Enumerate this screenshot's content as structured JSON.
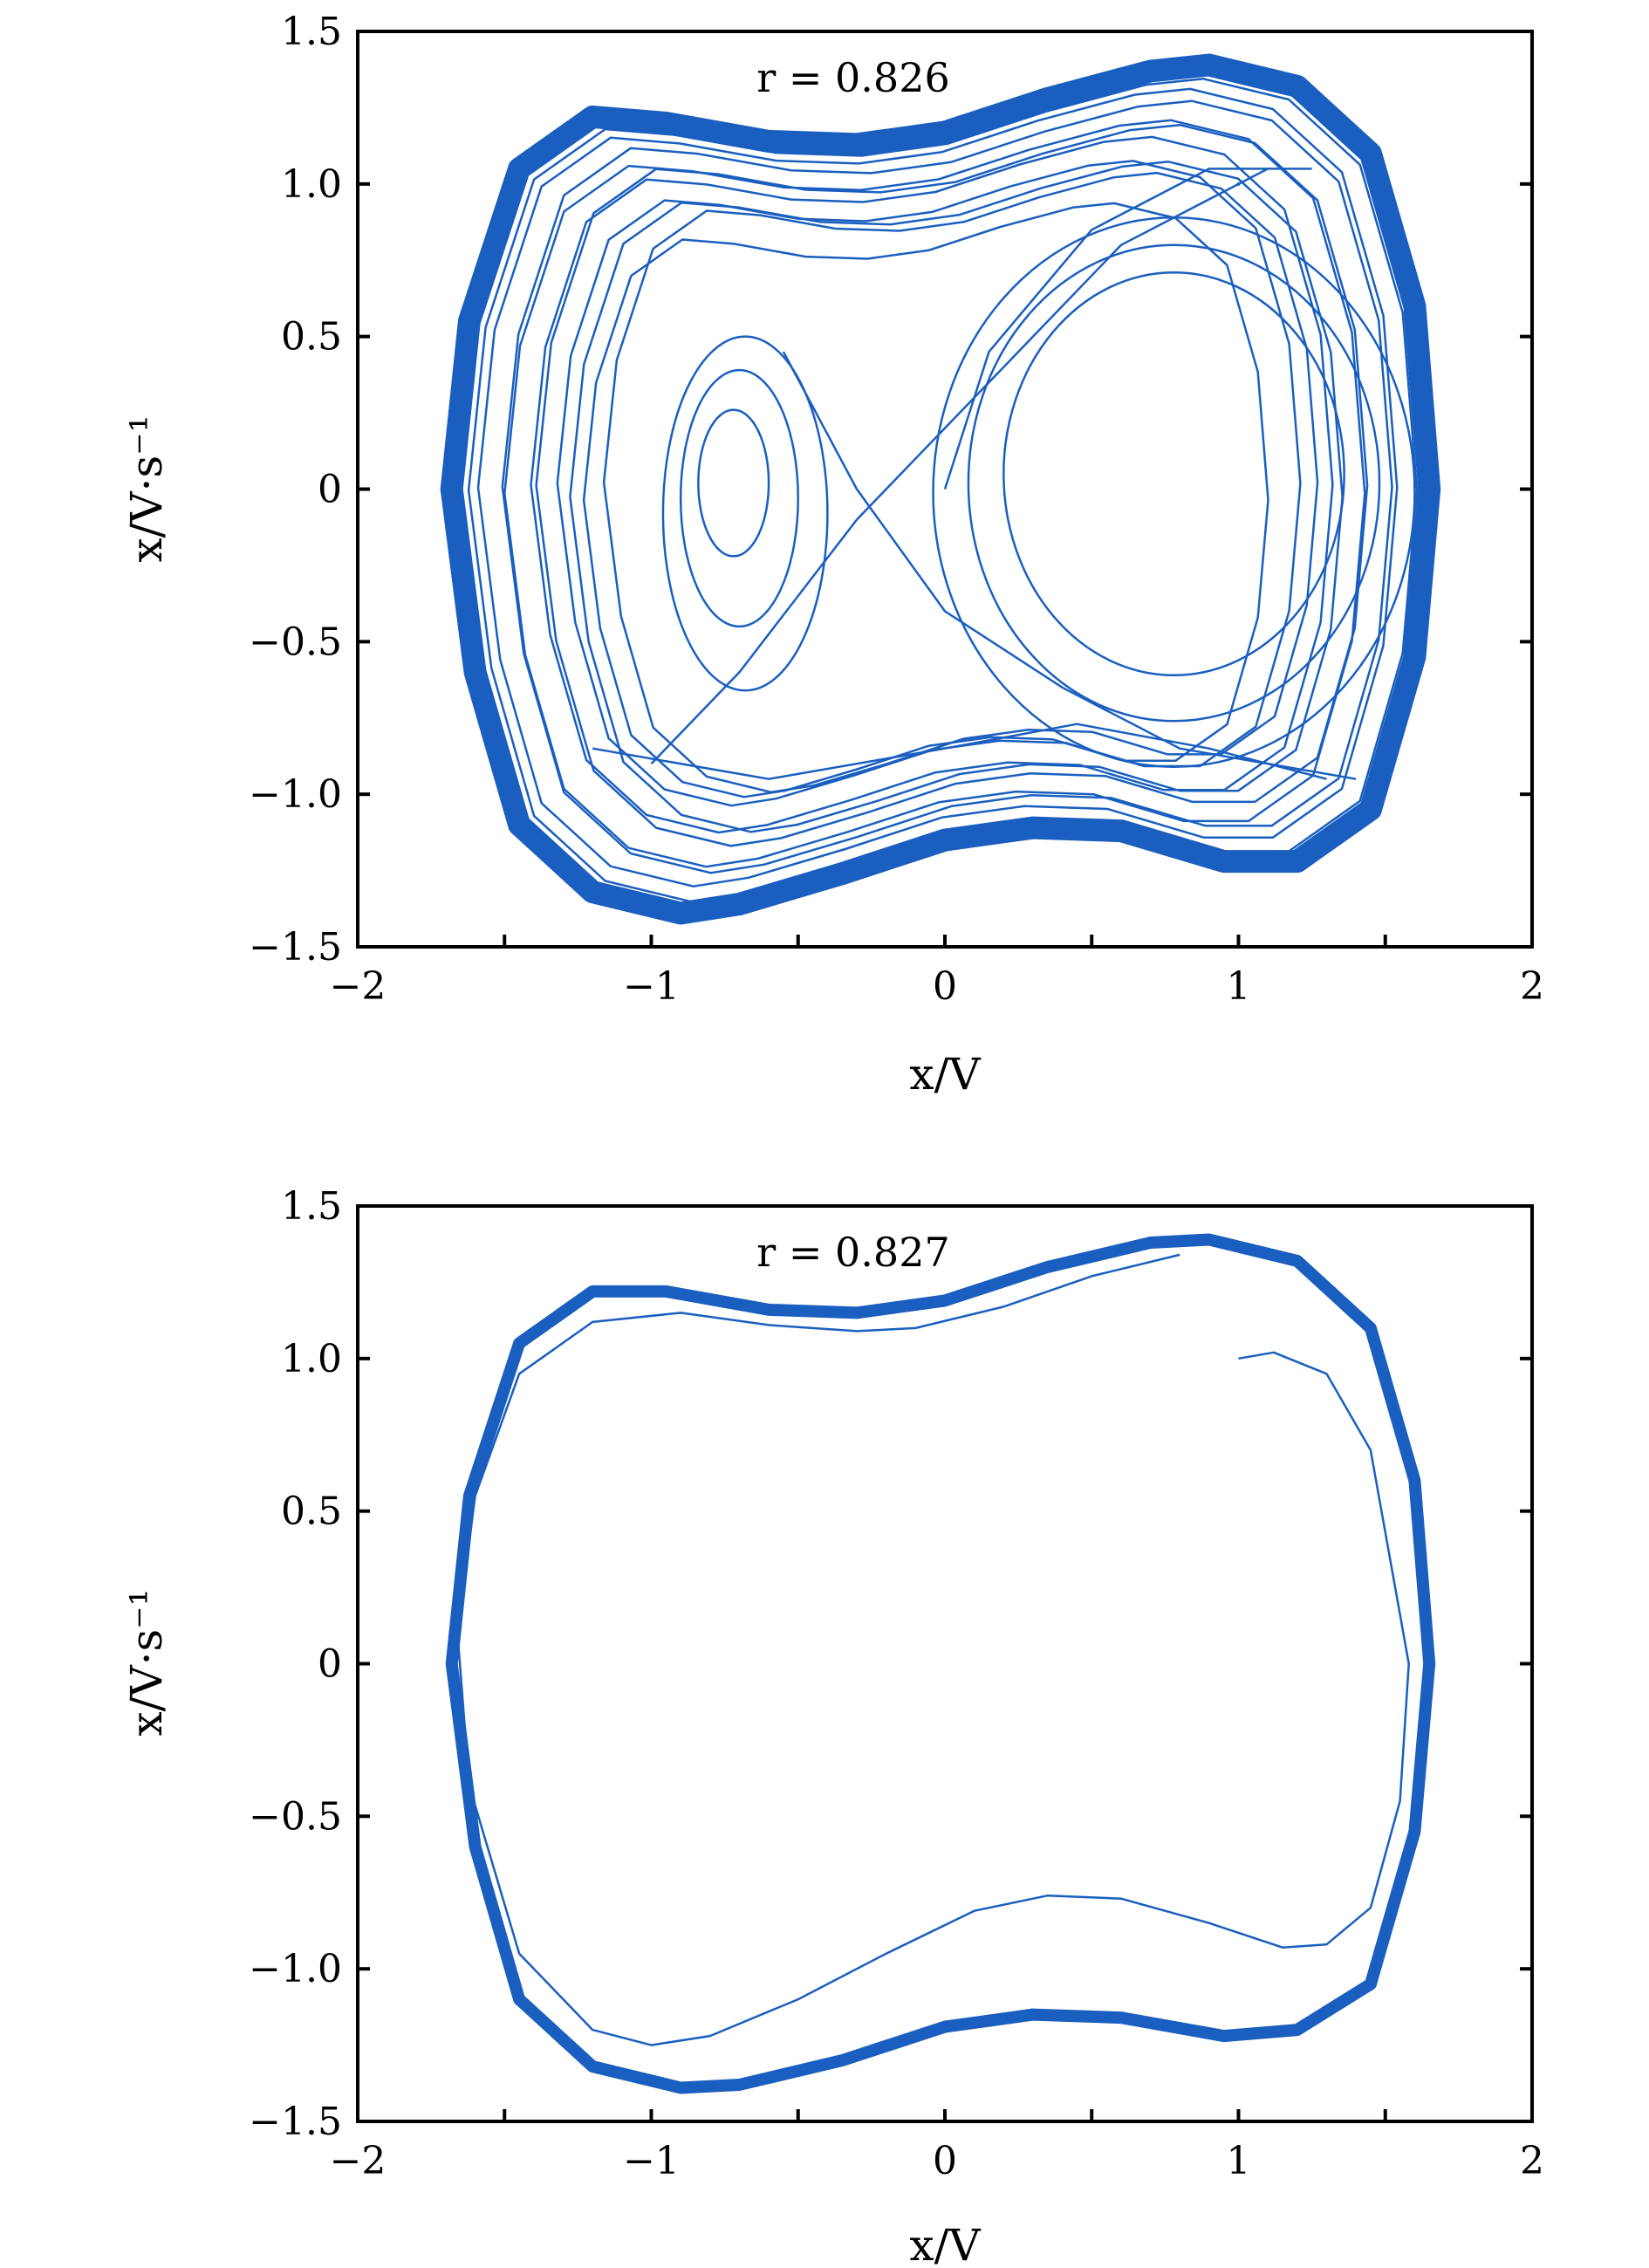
{
  "chart_data": [
    {
      "type": "line",
      "annotation": "r = 0.826",
      "xlabel": "x/V",
      "ylabel": "x/V·s⁻¹",
      "xlim": [
        -2,
        2
      ],
      "ylim": [
        -1.5,
        1.5
      ],
      "x_ticks": [
        -2,
        -1.5,
        -1,
        -0.5,
        0,
        0.5,
        1,
        1.5,
        2
      ],
      "x_tick_labels": [
        "−2",
        "",
        "−1",
        "",
        "0",
        "",
        "1",
        "",
        "2"
      ],
      "y_ticks": [
        -1.5,
        -1.0,
        -0.5,
        0,
        0.5,
        1.0,
        1.5
      ],
      "y_tick_labels": [
        "−1.5",
        "−1.0",
        "−0.5",
        "0",
        "0.5",
        "1.0",
        "1.5"
      ],
      "grid": false,
      "series_color": "#1a5fbf",
      "attractor": "chaotic",
      "transient_start": [
        1.0,
        1.0
      ],
      "outer_orbit": {
        "x": [
          -1.68,
          -1.62,
          -1.45,
          -1.2,
          -0.95,
          -0.6,
          -0.3,
          0.0,
          0.35,
          0.7,
          0.9,
          1.2,
          1.45,
          1.6,
          1.65,
          1.6,
          1.45,
          1.2,
          0.95,
          0.6,
          0.3,
          0.0,
          -0.35,
          -0.7,
          -0.9,
          -1.2,
          -1.45,
          -1.6,
          -1.68
        ],
        "y": [
          0.0,
          0.55,
          1.05,
          1.22,
          1.2,
          1.14,
          1.13,
          1.17,
          1.28,
          1.37,
          1.39,
          1.32,
          1.1,
          0.6,
          0.0,
          -0.55,
          -1.05,
          -1.22,
          -1.22,
          -1.12,
          -1.11,
          -1.15,
          -1.26,
          -1.36,
          -1.39,
          -1.32,
          -1.1,
          -0.6,
          0.0
        ]
      }
    },
    {
      "type": "line",
      "annotation": "r = 0.827",
      "xlabel": "x/V",
      "ylabel": "x/V·s⁻¹",
      "xlim": [
        -2,
        2
      ],
      "ylim": [
        -1.5,
        1.5
      ],
      "x_ticks": [
        -2,
        -1.5,
        -1,
        -0.5,
        0,
        0.5,
        1,
        1.5,
        2
      ],
      "x_tick_labels": [
        "−2",
        "",
        "−1",
        "",
        "0",
        "",
        "1",
        "",
        "2"
      ],
      "y_ticks": [
        -1.5,
        -1.0,
        -0.5,
        0,
        0.5,
        1.0,
        1.5
      ],
      "y_tick_labels": [
        "−1.5",
        "−1.0",
        "−0.5",
        "0",
        "0.5",
        "1.0",
        "1.5"
      ],
      "grid": false,
      "series_color": "#1a5fbf",
      "attractor": "limit-cycle",
      "transient": {
        "x": [
          1.0,
          1.12,
          1.3,
          1.45,
          1.58,
          1.55,
          1.45,
          1.3,
          1.15,
          0.9,
          0.6,
          0.35,
          0.1,
          -0.2,
          -0.5,
          -0.8,
          -1.0,
          -1.2,
          -1.45,
          -1.62,
          -1.66,
          -1.6,
          -1.45,
          -1.2,
          -0.9,
          -0.6,
          -0.3,
          -0.1,
          0.2,
          0.5,
          0.8
        ],
        "y": [
          1.0,
          1.02,
          0.95,
          0.7,
          0.0,
          -0.45,
          -0.8,
          -0.92,
          -0.93,
          -0.85,
          -0.77,
          -0.76,
          -0.81,
          -0.95,
          -1.1,
          -1.22,
          -1.25,
          -1.2,
          -0.95,
          -0.4,
          0.1,
          0.55,
          0.95,
          1.12,
          1.15,
          1.11,
          1.09,
          1.1,
          1.17,
          1.27,
          1.34
        ]
      },
      "limit_cycle": {
        "x": [
          -1.68,
          -1.62,
          -1.45,
          -1.2,
          -0.95,
          -0.6,
          -0.3,
          0.0,
          0.35,
          0.7,
          0.9,
          1.2,
          1.45,
          1.6,
          1.65,
          1.6,
          1.45,
          1.2,
          0.95,
          0.6,
          0.3,
          0.0,
          -0.35,
          -0.7,
          -0.9,
          -1.2,
          -1.45,
          -1.6,
          -1.68
        ],
        "y": [
          0.0,
          0.55,
          1.05,
          1.22,
          1.22,
          1.16,
          1.15,
          1.19,
          1.3,
          1.38,
          1.39,
          1.32,
          1.1,
          0.6,
          0.0,
          -0.55,
          -1.05,
          -1.2,
          -1.22,
          -1.16,
          -1.15,
          -1.19,
          -1.3,
          -1.38,
          -1.39,
          -1.32,
          -1.1,
          -0.6,
          0.0
        ]
      }
    }
  ]
}
